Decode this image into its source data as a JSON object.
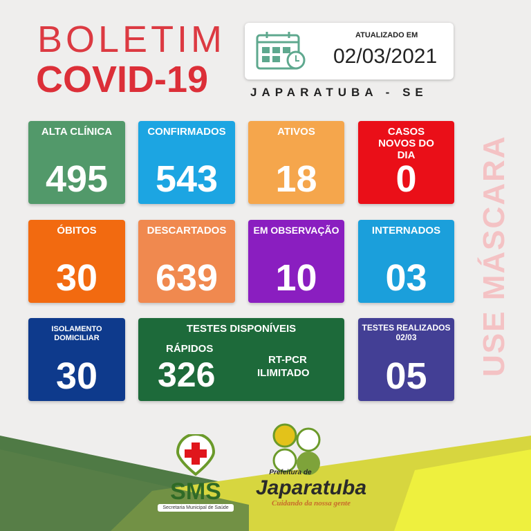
{
  "header": {
    "title_line1": "BOLETIM",
    "title_line2": "COVID-19",
    "updated_label": "ATUALIZADO EM",
    "updated_date": "02/03/2021",
    "city": "JAPARATUBA - SE",
    "icon": "calendar-clock-icon"
  },
  "cards": [
    {
      "label": "ALTA CLÍNICA",
      "value": "495",
      "color": "#52996a"
    },
    {
      "label": "CONFIRMADOS",
      "value": "543",
      "color": "#1ca5e2"
    },
    {
      "label": "ATIVOS",
      "value": "18",
      "color": "#f5a64c"
    },
    {
      "label": "CASOS NOVOS DO DIA",
      "value": "0",
      "color": "#ea0f18"
    },
    {
      "label": "ÓBITOS",
      "value": "30",
      "color": "#f26a10"
    },
    {
      "label": "DESCARTADOS",
      "value": "639",
      "color": "#f0894f"
    },
    {
      "label": "EM OBSERVAÇÃO",
      "value": "10",
      "color": "#8a1ec0"
    },
    {
      "label": "INTERNADOS",
      "value": "03",
      "color": "#1b9fdb"
    },
    {
      "label": "ISOLAMENTO DOMICILIAR",
      "value": "30",
      "color": "#0e3a8c"
    },
    {
      "label": "TESTES REALIZADOS 02/03",
      "value": "05",
      "color": "#433f95"
    }
  ],
  "tests": {
    "title": "TESTES DISPONÍVEIS",
    "rapid_label": "RÁPIDOS",
    "rapid_value": "326",
    "pcr_label": "RT-PCR",
    "pcr_value": "ILIMITADO",
    "color": "#1d6a3a"
  },
  "side_text": "USE MÁSCARA",
  "logos": {
    "sms": "SMS",
    "sms_sub": "Secretaria Municipal de Saúde",
    "pref_top": "Prefeitura de",
    "pref_name": "Japaratuba",
    "pref_slogan": "Cuidando da nossa gente"
  }
}
